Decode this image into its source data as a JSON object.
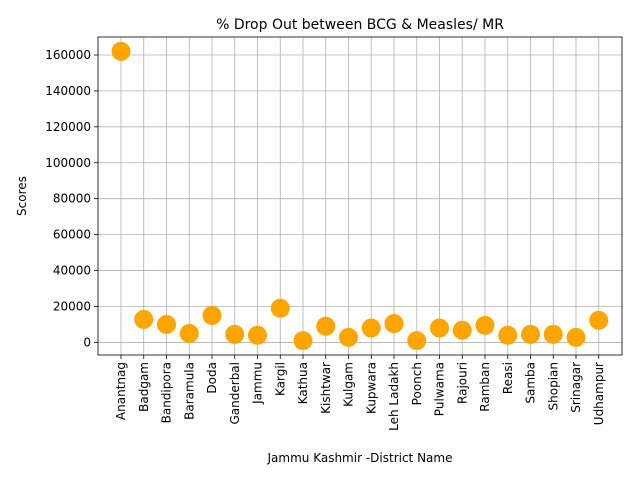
{
  "chart_data": {
    "type": "scatter",
    "title": "% Drop Out between BCG & Measles/ MR",
    "xlabel": "Jammu Kashmir -District Name",
    "ylabel": "Scores",
    "categories": [
      "Anantnag",
      "Badgam",
      "Bandipora",
      "Baramula",
      "Doda",
      "Ganderbal",
      "Jammu",
      "Kargil",
      "Kathua",
      "Kishtwar",
      "Kulgam",
      "Kupwara",
      "Leh Ladakh",
      "Poonch",
      "Pulwama",
      "Rajouri",
      "Ramban",
      "Reasi",
      "Samba",
      "Shopian",
      "Srinagar",
      "Udhampur"
    ],
    "values": [
      162000,
      12800,
      10000,
      5000,
      15000,
      4500,
      4000,
      19000,
      1000,
      9000,
      2800,
      8000,
      10500,
      1000,
      8000,
      6800,
      9500,
      4000,
      4500,
      4500,
      2800,
      12300
    ],
    "ylim": [
      -7000,
      170000
    ],
    "yticks": [
      0,
      20000,
      40000,
      60000,
      80000,
      100000,
      120000,
      140000,
      160000
    ],
    "grid": true,
    "marker_color": "#FFA500"
  }
}
